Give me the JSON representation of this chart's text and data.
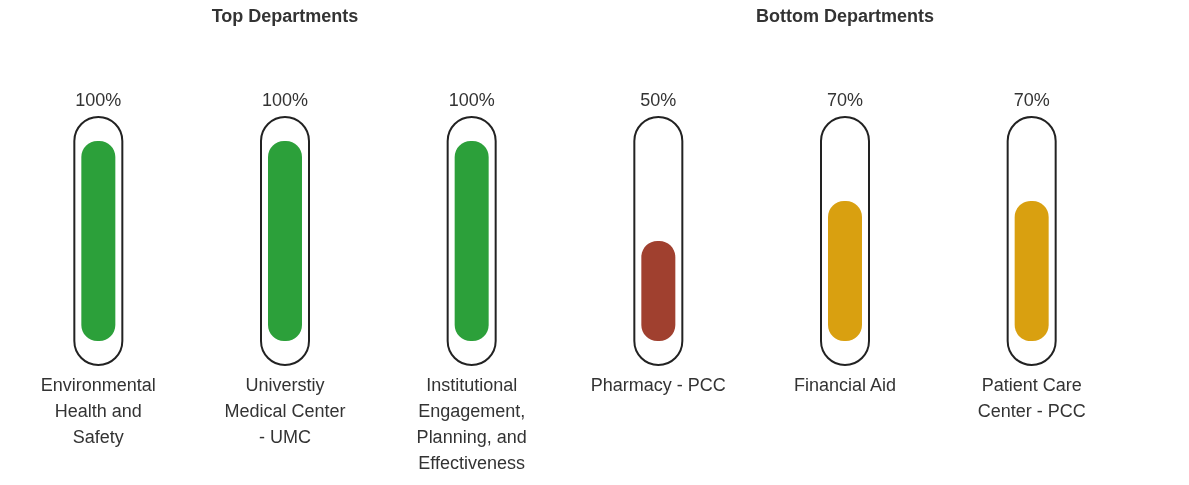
{
  "chart_data": [
    {
      "type": "other",
      "title": "Top Departments",
      "categories": [
        "Environmental Health and Safety",
        "Universtiy Medical Center - UMC",
        "Institutional Engagement, Planning, and Effectiveness"
      ],
      "values": [
        100,
        100,
        100
      ],
      "colors": [
        "#2ca03a",
        "#2ca03a",
        "#2ca03a"
      ],
      "value_labels": [
        "100%",
        "100%",
        "100%"
      ]
    },
    {
      "type": "other",
      "title": "Bottom Departments",
      "categories": [
        "Pharmacy - PCC",
        "Financial Aid",
        "Patient Care Center - PCC"
      ],
      "values": [
        50,
        70,
        70
      ],
      "colors": [
        "#a0402f",
        "#d9a010",
        "#d9a010"
      ],
      "value_labels": [
        "50%",
        "70%",
        "70%"
      ]
    }
  ]
}
